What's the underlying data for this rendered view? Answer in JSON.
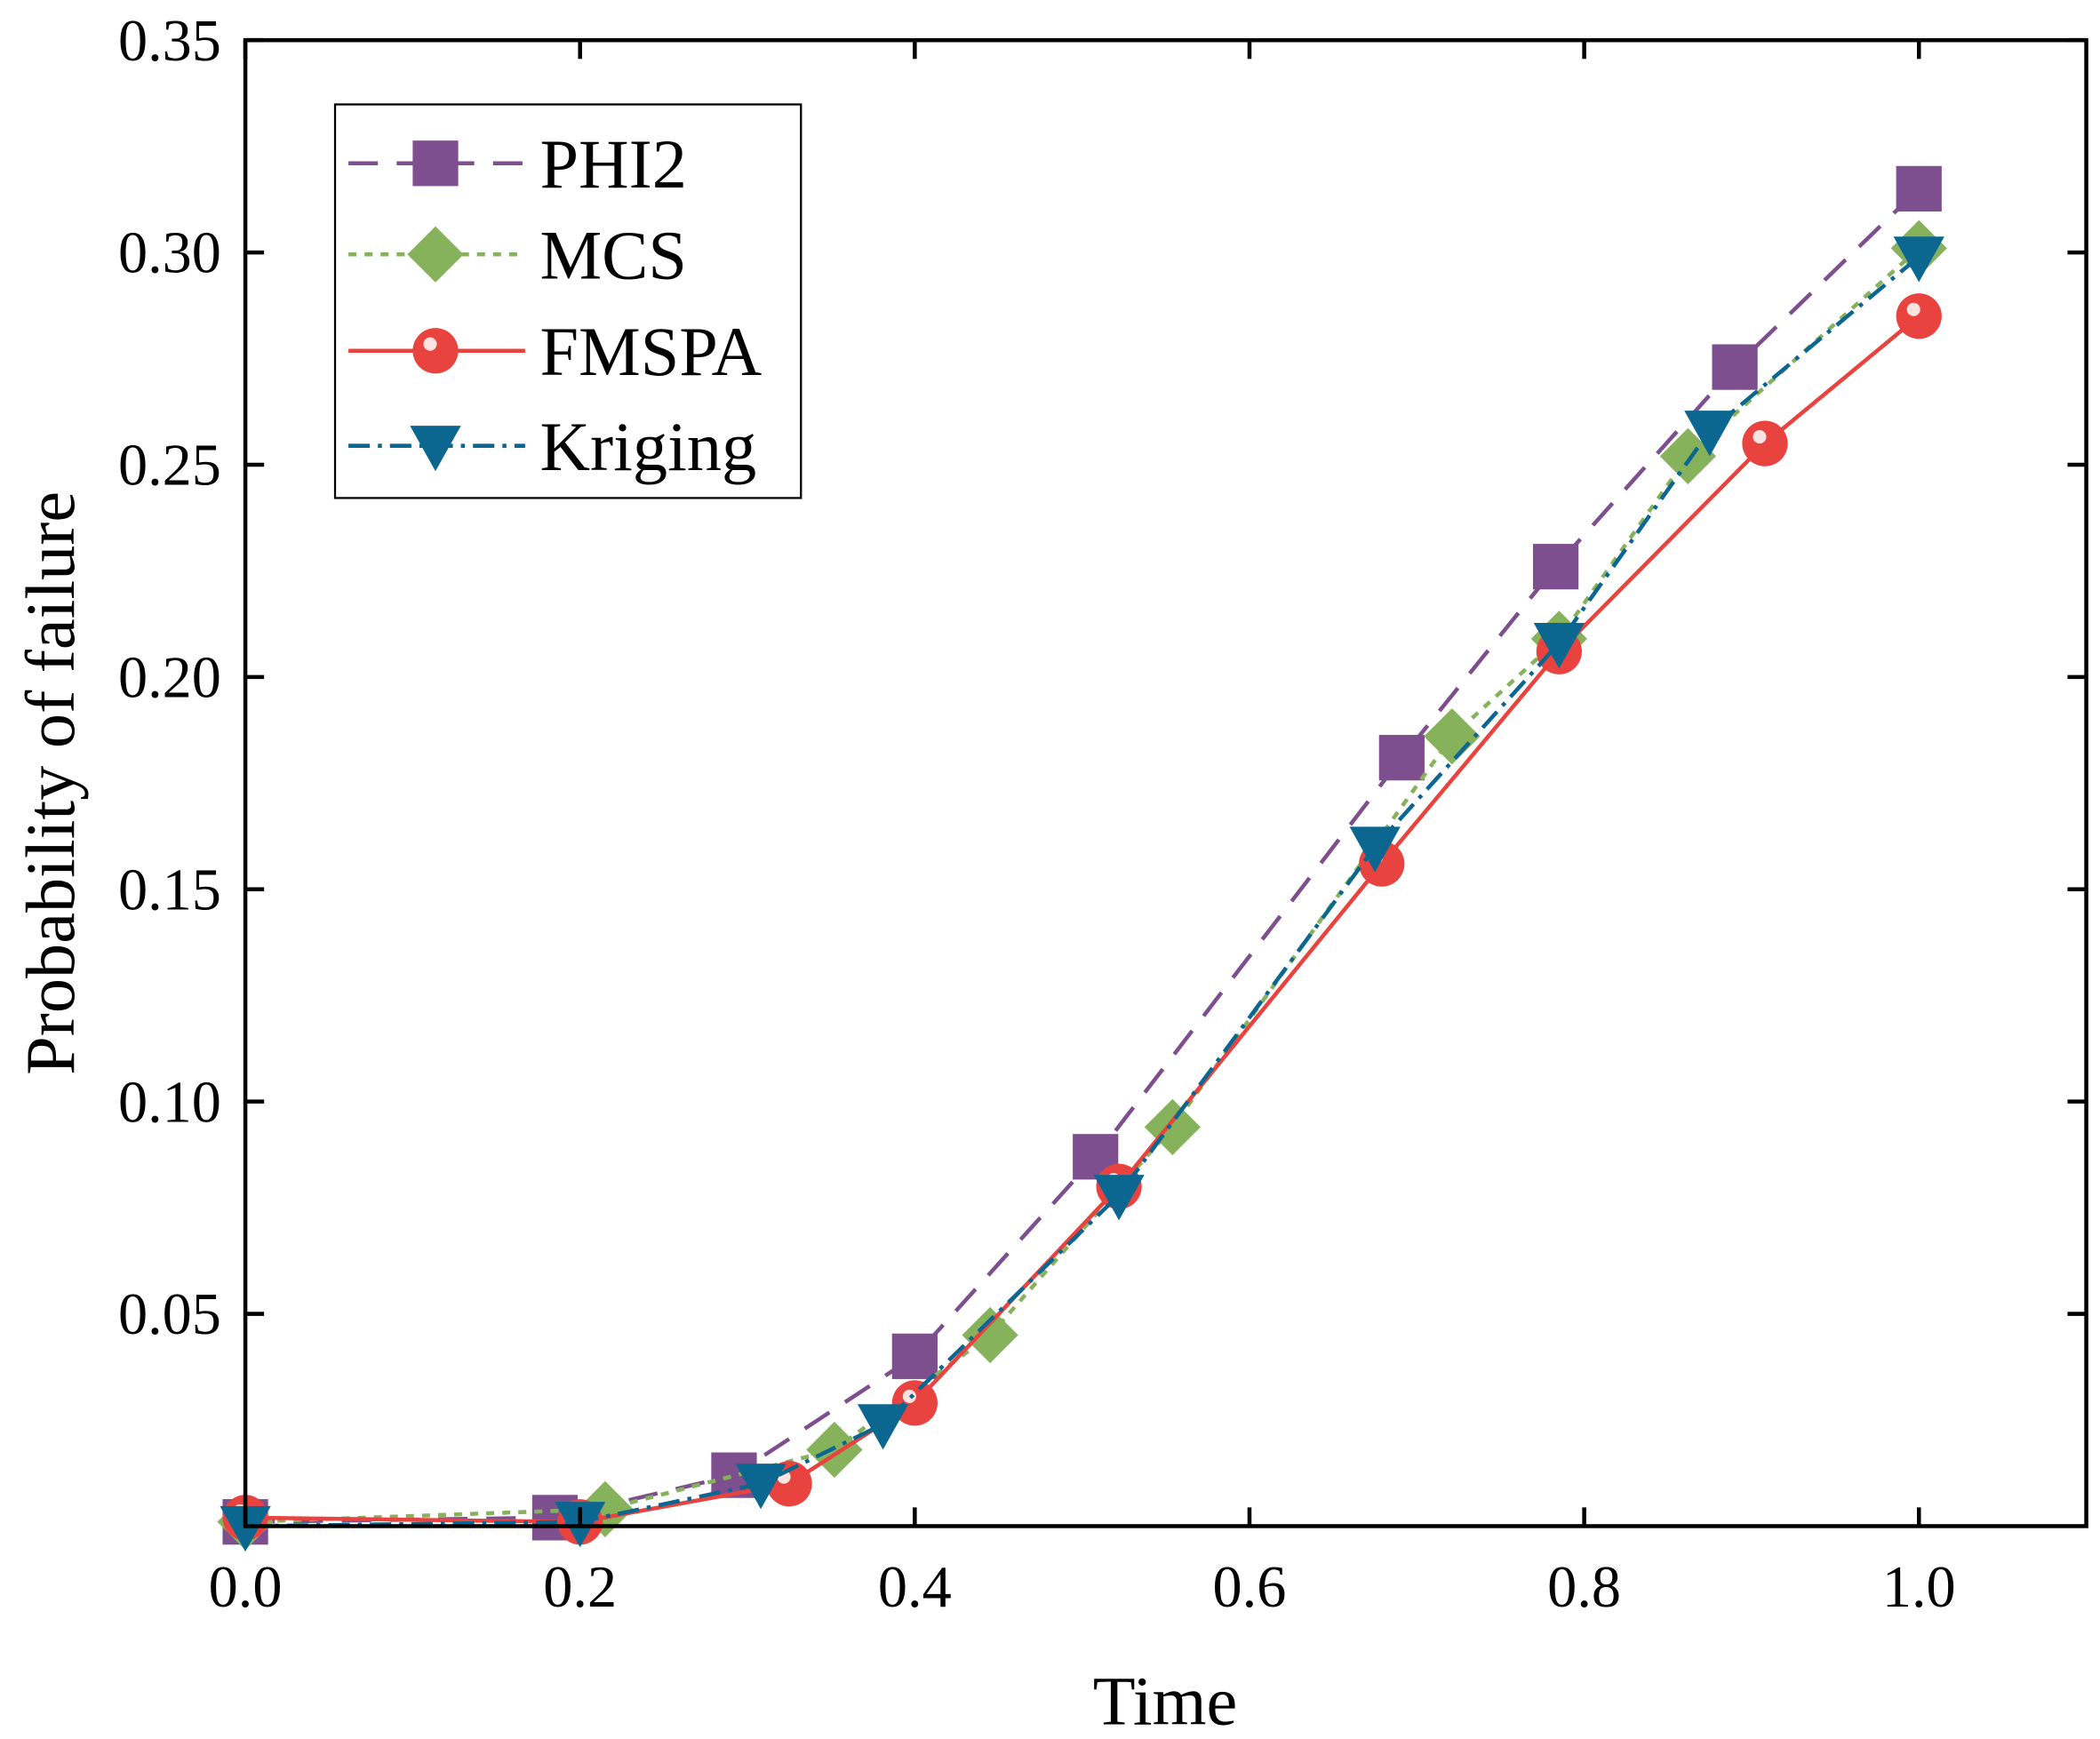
{
  "chart_data": {
    "type": "line",
    "title": "",
    "xlabel": "Time",
    "ylabel": "Probability of failure",
    "xlim": [
      0,
      1.1
    ],
    "ylim": [
      0,
      0.35
    ],
    "xticks": [
      0.0,
      0.2,
      0.4,
      0.6,
      0.8,
      1.0
    ],
    "xtick_labels": [
      "0.0",
      "0.2",
      "0.4",
      "0.6",
      "0.8",
      "1.0"
    ],
    "yticks": [
      0.05,
      0.1,
      0.15,
      0.2,
      0.25,
      0.3,
      0.35
    ],
    "ytick_labels": [
      "0.05",
      "0.10",
      "0.15",
      "0.20",
      "0.25",
      "0.30",
      "0.35"
    ],
    "grid": false,
    "legend_position": "top-left",
    "series": [
      {
        "name": "PHI2",
        "color": "#7e4f8e",
        "dash": "22,14",
        "marker": "square",
        "x": [
          0.0,
          0.185,
          0.292,
          0.4,
          0.508,
          0.691,
          0.783,
          0.89,
          1.0
        ],
        "y": [
          0.001,
          0.002,
          0.012,
          0.04,
          0.087,
          0.181,
          0.226,
          0.273,
          0.315
        ]
      },
      {
        "name": "MCS",
        "color": "#86b25c",
        "dash": "6,6",
        "marker": "diamond",
        "x": [
          0.0,
          0.215,
          0.352,
          0.445,
          0.554,
          0.721,
          0.785,
          0.862,
          1.0
        ],
        "y": [
          0.001,
          0.004,
          0.018,
          0.045,
          0.094,
          0.186,
          0.209,
          0.252,
          0.301
        ]
      },
      {
        "name": "FMSPA",
        "color": "#e8433f",
        "dash": "",
        "marker": "circle",
        "x": [
          0.0,
          0.2,
          0.325,
          0.4,
          0.522,
          0.679,
          0.785,
          0.908,
          1.0
        ],
        "y": [
          0.002,
          0.001,
          0.01,
          0.029,
          0.08,
          0.156,
          0.206,
          0.255,
          0.285
        ]
      },
      {
        "name": "Kriging",
        "color": "#0b6690",
        "dash": "16,6,3,6",
        "marker": "triangle-down",
        "x": [
          0.0,
          0.2,
          0.308,
          0.381,
          0.522,
          0.675,
          0.785,
          0.875,
          1.0
        ],
        "y": [
          0.0,
          0.001,
          0.01,
          0.024,
          0.078,
          0.16,
          0.208,
          0.258,
          0.299
        ]
      }
    ]
  }
}
